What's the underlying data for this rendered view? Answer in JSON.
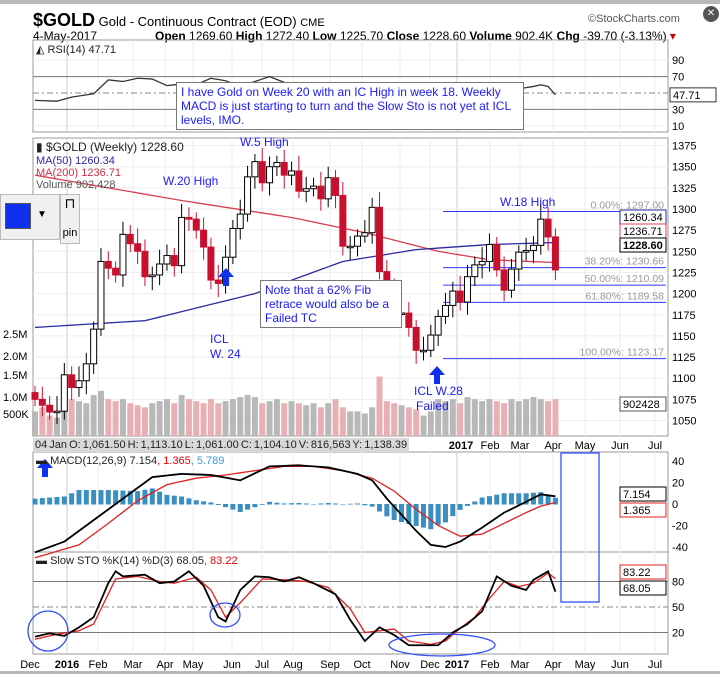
{
  "header": {
    "symbol": "$GOLD",
    "name": "Gold - Continuous Contract (EOD)",
    "exchange": "CME",
    "watermark": "©StockCharts.com",
    "date": "4-May-2017",
    "open_label": "Open",
    "open": "1269.60",
    "high_label": "High",
    "high": "1272.40",
    "low_label": "Low",
    "low": "1225.70",
    "close_label": "Close",
    "close": "1228.60",
    "volume_label": "Volume",
    "volume": "902.4K",
    "chg_label": "Chg",
    "chg": "-39.70 (-3.13%)"
  },
  "widget": {
    "pin_label": "pin"
  },
  "annotations": {
    "note1": "I have Gold on Week 20 with an IC High in week 18. Weekly MACD is just starting to turn and the Slow Sto is not yet at ICL levels, IMO.",
    "note2": "Note that a 62% Fib retrace would also be a Failed TC",
    "w5": "W.5 High",
    "w20": "W.20 High",
    "w18": "W.18 High",
    "icl24a": "ICL",
    "icl24b": "W. 24",
    "icl28a": "ICL W.28",
    "icl28b": "Failed"
  },
  "infobar": "04 Jan O: 1,061.50   H: 1,113.10   L: 1,061.00   C: 1,104.10   V: 816,563   Y: 1,138.39",
  "chart_data": [
    {
      "type": "candlestick",
      "title": "$GOLD (Weekly) 1228.60",
      "legend": [
        "MA(50) 1260.34",
        "MA(200) 1236.71",
        "Volume 902,428"
      ],
      "ylim": [
        1040,
        1385
      ],
      "yticks": [
        1050,
        1075,
        1100,
        1125,
        1150,
        1175,
        1200,
        1225,
        1250,
        1275,
        1300,
        1325,
        1350,
        1375
      ],
      "closes": [
        1075,
        1068,
        1060,
        1061,
        1104,
        1089,
        1097,
        1117,
        1158,
        1238,
        1230,
        1222,
        1270,
        1259,
        1250,
        1220,
        1222,
        1235,
        1245,
        1233,
        1290,
        1288,
        1275,
        1255,
        1216,
        1212,
        1243,
        1277,
        1294,
        1338,
        1356,
        1331,
        1350,
        1355,
        1340,
        1345,
        1321,
        1324,
        1327,
        1312,
        1337,
        1316,
        1256,
        1256,
        1268,
        1272,
        1302,
        1226,
        1208,
        1177,
        1177,
        1160,
        1133,
        1133,
        1151,
        1173,
        1186,
        1203,
        1190,
        1220,
        1234,
        1238,
        1258,
        1228,
        1204,
        1229,
        1249,
        1251,
        1257,
        1288,
        1267,
        1228
      ],
      "ma50_keys": [
        [
          0,
          1160
        ],
        [
          15,
          1168
        ],
        [
          30,
          1200
        ],
        [
          42,
          1238
        ],
        [
          52,
          1252
        ],
        [
          62,
          1258
        ],
        [
          71,
          1260.34
        ]
      ],
      "ma200_keys": [
        [
          0,
          1340
        ],
        [
          20,
          1310
        ],
        [
          35,
          1290
        ],
        [
          45,
          1272
        ],
        [
          55,
          1250
        ],
        [
          62,
          1240
        ],
        [
          71,
          1236.71
        ]
      ],
      "volume_M": [
        0.6,
        0.7,
        0.5,
        0.45,
        0.82,
        0.9,
        0.85,
        0.8,
        1.0,
        1.1,
        0.9,
        0.85,
        0.9,
        0.8,
        0.75,
        0.7,
        0.8,
        0.85,
        0.9,
        0.8,
        1.0,
        0.9,
        0.85,
        0.8,
        0.9,
        0.8,
        0.85,
        0.9,
        0.95,
        1.0,
        0.95,
        0.8,
        0.85,
        0.9,
        0.8,
        0.85,
        0.8,
        0.75,
        0.8,
        0.7,
        0.8,
        0.9,
        0.7,
        0.6,
        0.6,
        0.55,
        0.7,
        1.45,
        0.85,
        0.8,
        0.75,
        0.7,
        0.65,
        0.5,
        0.6,
        0.9,
        0.85,
        0.9,
        0.8,
        0.95,
        0.9,
        0.85,
        0.9,
        0.85,
        0.8,
        0.9,
        0.85,
        0.9,
        0.95,
        0.9,
        0.85,
        0.9
      ],
      "vol_ticks": [
        "2.5M",
        "2.0M",
        "1.5M",
        "1.0M",
        "500K"
      ],
      "fib": [
        {
          "label": "0.00%: 1297.00",
          "value": 1297
        },
        {
          "label": "38.20%: 1230.66",
          "value": 1230.66
        },
        {
          "label": "50.00%: 1210.09",
          "value": 1210.09
        },
        {
          "label": "61.80%: 1189.58",
          "value": 1189.58
        },
        {
          "label": "100.00%: 1123.17",
          "value": 1123.17
        }
      ],
      "tags": {
        "ma50": "1260.34",
        "ma200": "1236.71",
        "close": "1228.60",
        "volume": "902428"
      }
    },
    {
      "type": "line",
      "title": "RSI(14) 47.71",
      "yticks": [
        90,
        70,
        30,
        10
      ],
      "tag": "47.71",
      "keys": [
        [
          0,
          41
        ],
        [
          3,
          40
        ],
        [
          5,
          45
        ],
        [
          8,
          49
        ],
        [
          10,
          66
        ],
        [
          12,
          64
        ],
        [
          14,
          68
        ],
        [
          16,
          67
        ],
        [
          18,
          59
        ],
        [
          20,
          61
        ],
        [
          22,
          60
        ],
        [
          24,
          68
        ],
        [
          26,
          65
        ],
        [
          28,
          58
        ],
        [
          30,
          64
        ],
        [
          32,
          70
        ],
        [
          34,
          63
        ],
        [
          36,
          61
        ],
        [
          38,
          60
        ],
        [
          40,
          58
        ],
        [
          42,
          55
        ],
        [
          44,
          57
        ],
        [
          46,
          54
        ],
        [
          48,
          42
        ],
        [
          50,
          38
        ],
        [
          52,
          33
        ],
        [
          54,
          36
        ],
        [
          56,
          40
        ],
        [
          58,
          45
        ],
        [
          60,
          50
        ],
        [
          62,
          52
        ],
        [
          64,
          47
        ],
        [
          66,
          55
        ],
        [
          68,
          58
        ],
        [
          69,
          60
        ],
        [
          70,
          58
        ],
        [
          71,
          47.71
        ]
      ]
    },
    {
      "type": "line",
      "title": "MACD(12,26,9)",
      "values_text": [
        "7.154",
        ", 1.365",
        ", 5.789"
      ],
      "yticks": [
        40,
        20,
        0,
        -20,
        -40
      ],
      "tags": [
        "7.154",
        "1.365"
      ],
      "macd_keys": [
        [
          0,
          -45
        ],
        [
          4,
          -35
        ],
        [
          8,
          -15
        ],
        [
          12,
          5
        ],
        [
          16,
          25
        ],
        [
          20,
          28
        ],
        [
          24,
          27
        ],
        [
          28,
          22
        ],
        [
          32,
          35
        ],
        [
          36,
          36
        ],
        [
          40,
          34
        ],
        [
          44,
          28
        ],
        [
          46,
          22
        ],
        [
          48,
          5
        ],
        [
          50,
          -10
        ],
        [
          52,
          -25
        ],
        [
          54,
          -38
        ],
        [
          56,
          -40
        ],
        [
          58,
          -35
        ],
        [
          61,
          -22
        ],
        [
          64,
          -8
        ],
        [
          67,
          2
        ],
        [
          69,
          9
        ],
        [
          71,
          7.154
        ]
      ],
      "signal_keys": [
        [
          0,
          -50
        ],
        [
          6,
          -38
        ],
        [
          10,
          -18
        ],
        [
          14,
          3
        ],
        [
          18,
          18
        ],
        [
          22,
          24
        ],
        [
          26,
          27
        ],
        [
          30,
          31
        ],
        [
          34,
          35
        ],
        [
          38,
          35
        ],
        [
          42,
          31
        ],
        [
          46,
          24
        ],
        [
          49,
          12
        ],
        [
          52,
          -5
        ],
        [
          55,
          -20
        ],
        [
          58,
          -30
        ],
        [
          61,
          -28
        ],
        [
          64,
          -18
        ],
        [
          67,
          -8
        ],
        [
          69,
          -2
        ],
        [
          71,
          1.365
        ]
      ]
    },
    {
      "type": "line",
      "title": "Slow STO %K(14) %D(3)",
      "values_text": [
        "68.05",
        ", 83.22"
      ],
      "yticks": [
        80,
        50,
        20
      ],
      "tags": [
        "83.22",
        "68.05"
      ],
      "k_keys": [
        [
          0,
          15
        ],
        [
          2,
          19
        ],
        [
          4,
          16
        ],
        [
          6,
          26
        ],
        [
          8,
          38
        ],
        [
          10,
          78
        ],
        [
          11,
          92
        ],
        [
          12,
          86
        ],
        [
          15,
          88
        ],
        [
          17,
          78
        ],
        [
          19,
          80
        ],
        [
          21,
          92
        ],
        [
          23,
          75
        ],
        [
          25,
          38
        ],
        [
          26,
          33
        ],
        [
          28,
          70
        ],
        [
          30,
          86
        ],
        [
          32,
          85
        ],
        [
          34,
          80
        ],
        [
          36,
          85
        ],
        [
          38,
          78
        ],
        [
          41,
          65
        ],
        [
          43,
          35
        ],
        [
          45,
          10
        ],
        [
          47,
          26
        ],
        [
          49,
          17
        ],
        [
          51,
          5
        ],
        [
          53,
          5
        ],
        [
          55,
          5
        ],
        [
          57,
          20
        ],
        [
          59,
          30
        ],
        [
          61,
          45
        ],
        [
          63,
          86
        ],
        [
          65,
          75
        ],
        [
          67,
          70
        ],
        [
          68,
          82
        ],
        [
          70,
          92
        ],
        [
          71,
          68.05
        ]
      ],
      "d_keys": [
        [
          0,
          12
        ],
        [
          3,
          18
        ],
        [
          6,
          22
        ],
        [
          8,
          30
        ],
        [
          11,
          83
        ],
        [
          14,
          86
        ],
        [
          17,
          80
        ],
        [
          19,
          78
        ],
        [
          22,
          85
        ],
        [
          24,
          70
        ],
        [
          26,
          38
        ],
        [
          28,
          55
        ],
        [
          31,
          83
        ],
        [
          34,
          82
        ],
        [
          37,
          80
        ],
        [
          40,
          73
        ],
        [
          43,
          48
        ],
        [
          45,
          20
        ],
        [
          47,
          22
        ],
        [
          49,
          24
        ],
        [
          51,
          10
        ],
        [
          54,
          6
        ],
        [
          56,
          10
        ],
        [
          58,
          25
        ],
        [
          60,
          38
        ],
        [
          62,
          60
        ],
        [
          64,
          80
        ],
        [
          66,
          74
        ],
        [
          68,
          78
        ],
        [
          70,
          90
        ],
        [
          71,
          83.22
        ]
      ]
    }
  ],
  "x_axis": {
    "labels": [
      "Dec",
      "2016",
      "Feb",
      "Mar",
      "Apr",
      "May",
      "Jun",
      "Jul",
      "Aug",
      "Sep",
      "Oct",
      "Nov",
      "Dec",
      "2017",
      "Feb",
      "Mar",
      "Apr",
      "May",
      "Jun",
      "Jul"
    ],
    "mid_labels": [
      "2017",
      "Feb",
      "Mar",
      "Apr",
      "May",
      "Jun",
      "Jul"
    ]
  }
}
